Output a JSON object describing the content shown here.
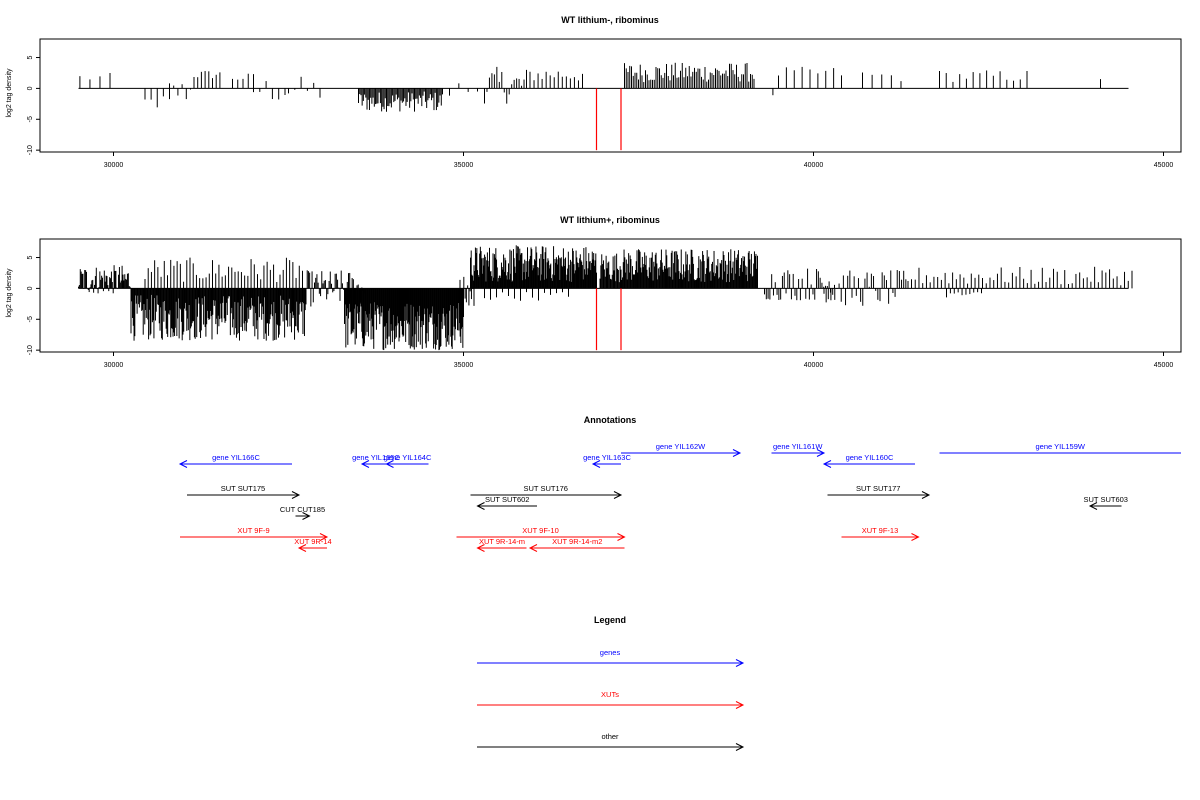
{
  "chart_data": [
    {
      "type": "bar",
      "title": "WT lithium-, ribominus",
      "xlabel": "",
      "ylabel": "log2 tag density",
      "xlim": [
        28950,
        45250
      ],
      "ylim": [
        -10.3,
        8
      ],
      "xticks": [
        30000,
        35000,
        40000,
        45000
      ],
      "yticks": [
        -10,
        -5,
        0,
        5
      ],
      "x_baseline_range": [
        29500,
        44500
      ],
      "red_markers_x": [
        36900,
        37250
      ],
      "red_markers_range": [
        0,
        -10
      ],
      "bar_color": "#000000",
      "marker_color": "#ff0000",
      "series": [
        {
          "segments": [
            {
              "x_start": 29520,
              "x_end": 29950,
              "count": 4,
              "min": 1.0,
              "max": 2.5
            },
            {
              "x_start": 30450,
              "x_end": 30800,
              "count": 5,
              "min": -3.5,
              "max": -1.0
            },
            {
              "x_start": 30800,
              "x_end": 31100,
              "count": 6,
              "min": -2.5,
              "max": 1.5
            },
            {
              "x_start": 31150,
              "x_end": 31520,
              "count": 8,
              "min": 1.5,
              "max": 3.0
            },
            {
              "x_start": 31700,
              "x_end": 32000,
              "count": 5,
              "min": 1.0,
              "max": 2.5
            },
            {
              "x_start": 32000,
              "x_end": 32450,
              "count": 6,
              "min": -2.5,
              "max": 2.0
            },
            {
              "x_start": 32500,
              "x_end": 32950,
              "count": 6,
              "min": -2.5,
              "max": 2.0
            },
            {
              "x_start": 33500,
              "x_end": 34700,
              "count": 70,
              "min": -3.8,
              "max": -0.5
            },
            {
              "x_start": 34800,
              "x_end": 35200,
              "count": 4,
              "min": -2.0,
              "max": 1.5
            },
            {
              "x_start": 35300,
              "x_end": 35900,
              "count": 18,
              "min": -2.5,
              "max": 3.5
            },
            {
              "x_start": 35950,
              "x_end": 36700,
              "count": 14,
              "min": 1.0,
              "max": 3.5
            },
            {
              "x_start": 37300,
              "x_end": 39150,
              "count": 75,
              "min": 1.0,
              "max": 4.2
            },
            {
              "x_start": 39420,
              "x_end": 39480,
              "count": 1,
              "min": -2.0,
              "max": -1.0
            },
            {
              "x_start": 39500,
              "x_end": 40400,
              "count": 9,
              "min": 1.5,
              "max": 3.5
            },
            {
              "x_start": 40700,
              "x_end": 41250,
              "count": 5,
              "min": 1.0,
              "max": 3.0
            },
            {
              "x_start": 41800,
              "x_end": 43050,
              "count": 14,
              "min": 1.0,
              "max": 3.0
            },
            {
              "x_start": 44100,
              "x_end": 44120,
              "count": 1,
              "min": 1.5,
              "max": 1.5
            }
          ]
        }
      ]
    },
    {
      "type": "bar",
      "title": "WT lithium+, ribominus",
      "xlabel": "",
      "ylabel": "log2 tag density",
      "xlim": [
        28950,
        45250
      ],
      "ylim": [
        -10.3,
        8
      ],
      "xticks": [
        30000,
        35000,
        40000,
        45000
      ],
      "yticks": [
        -10,
        -5,
        0,
        5
      ],
      "x_baseline_range": [
        29500,
        44500
      ],
      "red_markers_x": [
        36900,
        37250
      ],
      "red_markers_range": [
        0,
        -10
      ],
      "bar_color": "#000000",
      "marker_color": "#ff0000",
      "series": [
        {
          "segments": [
            {
              "x_start": 29500,
              "x_end": 30250,
              "count": 60,
              "min": -1.0,
              "max": 3.8
            },
            {
              "x_start": 30250,
              "x_end": 32750,
              "count": 230,
              "min": -8.5,
              "max": -1.0
            },
            {
              "x_start": 30450,
              "x_end": 32700,
              "count": 50,
              "min": 1.0,
              "max": 5.0
            },
            {
              "x_start": 32750,
              "x_end": 33600,
              "count": 50,
              "min": -3.0,
              "max": 3.0
            },
            {
              "x_start": 33300,
              "x_end": 35000,
              "count": 180,
              "min": -10.0,
              "max": -2.0
            },
            {
              "x_start": 34950,
              "x_end": 35150,
              "count": 12,
              "min": -4.0,
              "max": 2.0
            },
            {
              "x_start": 35100,
              "x_end": 36900,
              "count": 180,
              "min": 1.0,
              "max": 7.0
            },
            {
              "x_start": 35300,
              "x_end": 36500,
              "count": 15,
              "min": -2.0,
              "max": -0.5
            },
            {
              "x_start": 36950,
              "x_end": 37250,
              "count": 25,
              "min": 1.0,
              "max": 6.0
            },
            {
              "x_start": 37250,
              "x_end": 39200,
              "count": 180,
              "min": 1.0,
              "max": 6.5
            },
            {
              "x_start": 39300,
              "x_end": 40300,
              "count": 40,
              "min": -2.0,
              "max": 3.5
            },
            {
              "x_start": 40150,
              "x_end": 41350,
              "count": 40,
              "min": -3.0,
              "max": 3.0
            },
            {
              "x_start": 41400,
              "x_end": 44550,
              "count": 60,
              "min": 0.5,
              "max": 3.5
            },
            {
              "x_start": 41900,
              "x_end": 42400,
              "count": 10,
              "min": -1.5,
              "max": -0.5
            }
          ]
        }
      ]
    }
  ],
  "annotations": {
    "title": "Annotations",
    "xlim": [
      28950,
      45250
    ],
    "items": [
      {
        "label": "gene YIL166C",
        "x_start": 32550,
        "x_end": 30950,
        "row": 1,
        "color": "#0000ff",
        "arrow": "left"
      },
      {
        "label": "gene YIL165C",
        "x_start": 33950,
        "x_end": 33550,
        "row": 1,
        "color": "#0000ff",
        "arrow": "left"
      },
      {
        "label": "gene YIL164C",
        "x_start": 34500,
        "x_end": 33900,
        "row": 1,
        "color": "#0000ff",
        "arrow": "left"
      },
      {
        "label": "gene YIL163C",
        "x_start": 37250,
        "x_end": 36850,
        "row": 1,
        "color": "#0000ff",
        "arrow": "left"
      },
      {
        "label": "gene YIL162W",
        "x_start": 37250,
        "x_end": 38950,
        "row": 0,
        "color": "#0000ff",
        "arrow": "right"
      },
      {
        "label": "gene YIL161W",
        "x_start": 39400,
        "x_end": 40150,
        "row": 0,
        "color": "#0000ff",
        "arrow": "right"
      },
      {
        "label": "gene YIL160C",
        "x_start": 41450,
        "x_end": 40150,
        "row": 1,
        "color": "#0000ff",
        "arrow": "left"
      },
      {
        "label": "gene YIL159W",
        "x_start": 41800,
        "x_end": 45250,
        "row": 0,
        "color": "#0000ff",
        "arrow": "none"
      },
      {
        "label": "SUT SUT175",
        "x_start": 31050,
        "x_end": 32650,
        "row": 3,
        "color": "#000000",
        "arrow": "right"
      },
      {
        "label": "CUT CUT185",
        "x_start": 32600,
        "x_end": 32800,
        "row": 5,
        "color": "#000000",
        "arrow": "right"
      },
      {
        "label": "SUT SUT176",
        "x_start": 35100,
        "x_end": 37250,
        "row": 3,
        "color": "#000000",
        "arrow": "right"
      },
      {
        "label": "SUT SUT602",
        "x_start": 36050,
        "x_end": 35200,
        "row": 4,
        "color": "#000000",
        "arrow": "left"
      },
      {
        "label": "SUT SUT177",
        "x_start": 40200,
        "x_end": 41650,
        "row": 3,
        "color": "#000000",
        "arrow": "right"
      },
      {
        "label": "SUT SUT603",
        "x_start": 44400,
        "x_end": 43950,
        "row": 4,
        "color": "#000000",
        "arrow": "left"
      },
      {
        "label": "XUT 9F-9",
        "x_start": 30950,
        "x_end": 33050,
        "row": 6,
        "color": "#ff0000",
        "arrow": "right"
      },
      {
        "label": "XUT 9R-14",
        "x_start": 33050,
        "x_end": 32650,
        "row": 7,
        "color": "#ff0000",
        "arrow": "left"
      },
      {
        "label": "XUT 9F-10",
        "x_start": 34900,
        "x_end": 37300,
        "row": 6,
        "color": "#ff0000",
        "arrow": "right"
      },
      {
        "label": "XUT 9R-14-m",
        "x_start": 35900,
        "x_end": 35200,
        "row": 7,
        "color": "#ff0000",
        "arrow": "left"
      },
      {
        "label": "XUT 9R-14-m2",
        "x_start": 37300,
        "x_end": 35950,
        "row": 7,
        "color": "#ff0000",
        "arrow": "left"
      },
      {
        "label": "XUT 9F-13",
        "x_start": 40400,
        "x_end": 41500,
        "row": 6,
        "color": "#ff0000",
        "arrow": "right"
      }
    ]
  },
  "legend": {
    "title": "Legend",
    "items": [
      {
        "label": "genes",
        "color": "#0000ff"
      },
      {
        "label": "XUTs",
        "color": "#ff0000"
      },
      {
        "label": "other",
        "color": "#000000"
      }
    ]
  }
}
